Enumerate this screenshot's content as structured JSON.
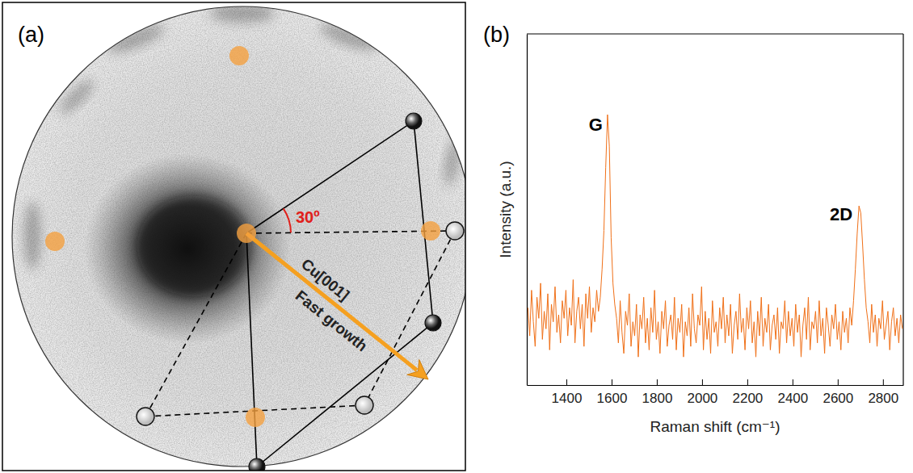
{
  "chart_data": [
    {
      "type": "diffraction",
      "title": "(a)",
      "annotations": [
        {
          "text": "30º"
        },
        {
          "text": "Cu[001]"
        },
        {
          "text": "Fast growth"
        }
      ]
    },
    {
      "type": "line",
      "title": "(b)",
      "x_label": "Raman shift (cm⁻¹)",
      "y_label": "Intensity (a.u.)",
      "color": "#f07018",
      "tick_labels": "x",
      "xlim": [
        1225,
        2890
      ],
      "xticks": [
        1400,
        1600,
        1800,
        2000,
        2200,
        2400,
        2600,
        2800
      ],
      "ylim": [
        0,
        100
      ],
      "annotations": [
        {
          "text": "G",
          "x": 1582
        },
        {
          "text": "2D",
          "x": 2694
        }
      ],
      "x": [
        1230,
        1238,
        1246,
        1254,
        1262,
        1270,
        1278,
        1286,
        1294,
        1302,
        1310,
        1318,
        1326,
        1334,
        1342,
        1350,
        1358,
        1366,
        1374,
        1382,
        1390,
        1398,
        1406,
        1414,
        1422,
        1430,
        1438,
        1446,
        1454,
        1462,
        1470,
        1478,
        1486,
        1494,
        1502,
        1510,
        1518,
        1526,
        1534,
        1542,
        1550,
        1558,
        1566,
        1574,
        1582,
        1590,
        1598,
        1606,
        1614,
        1622,
        1630,
        1638,
        1646,
        1654,
        1662,
        1670,
        1678,
        1686,
        1694,
        1702,
        1710,
        1718,
        1726,
        1734,
        1742,
        1750,
        1758,
        1766,
        1774,
        1782,
        1790,
        1798,
        1806,
        1814,
        1822,
        1830,
        1838,
        1846,
        1854,
        1862,
        1870,
        1878,
        1886,
        1894,
        1902,
        1910,
        1918,
        1926,
        1934,
        1942,
        1950,
        1958,
        1966,
        1974,
        1982,
        1990,
        1998,
        2006,
        2014,
        2022,
        2030,
        2038,
        2046,
        2054,
        2062,
        2070,
        2078,
        2086,
        2094,
        2102,
        2110,
        2118,
        2126,
        2134,
        2142,
        2150,
        2158,
        2166,
        2174,
        2182,
        2190,
        2198,
        2206,
        2214,
        2222,
        2230,
        2238,
        2246,
        2254,
        2262,
        2270,
        2278,
        2286,
        2294,
        2302,
        2310,
        2318,
        2326,
        2334,
        2342,
        2350,
        2358,
        2366,
        2374,
        2382,
        2390,
        2398,
        2406,
        2414,
        2422,
        2430,
        2438,
        2446,
        2454,
        2462,
        2470,
        2478,
        2486,
        2494,
        2502,
        2510,
        2518,
        2526,
        2534,
        2542,
        2550,
        2558,
        2566,
        2574,
        2582,
        2590,
        2598,
        2606,
        2614,
        2622,
        2630,
        2638,
        2646,
        2654,
        2662,
        2670,
        2678,
        2686,
        2694,
        2702,
        2710,
        2718,
        2726,
        2734,
        2742,
        2750,
        2758,
        2766,
        2774,
        2782,
        2790,
        2798,
        2806,
        2814,
        2822,
        2830,
        2838,
        2846,
        2854,
        2862,
        2870,
        2878,
        2886
      ],
      "values": [
        22,
        14,
        27,
        18,
        11,
        25,
        19,
        29,
        13,
        21,
        16,
        26,
        10,
        23,
        18,
        28,
        15,
        20,
        12,
        24,
        19,
        27,
        14,
        22,
        17,
        30,
        12,
        21,
        25,
        16,
        23,
        11,
        26,
        19,
        28,
        15,
        22,
        18,
        27,
        21,
        25,
        33,
        44,
        62,
        77,
        68,
        42,
        29,
        23,
        19,
        12,
        24,
        15,
        9,
        21,
        17,
        26,
        11,
        18,
        14,
        23,
        8,
        20,
        16,
        25,
        12,
        19,
        10,
        22,
        15,
        27,
        13,
        18,
        9,
        21,
        16,
        24,
        11,
        17,
        20,
        13,
        25,
        10,
        19,
        15,
        23,
        8,
        18,
        14,
        22,
        11,
        26,
        16,
        12,
        20,
        17,
        28,
        10,
        21,
        13,
        19,
        9,
        24,
        15,
        18,
        11,
        22,
        16,
        25,
        12,
        20,
        14,
        23,
        9,
        17,
        21,
        13,
        26,
        15,
        19,
        10,
        22,
        16,
        24,
        12,
        18,
        8,
        21,
        14,
        25,
        11,
        19,
        15,
        23,
        10,
        17,
        20,
        13,
        22,
        9,
        18,
        16,
        24,
        12,
        21,
        14,
        19,
        11,
        23,
        15,
        20,
        8,
        17,
        22,
        13,
        25,
        10,
        18,
        16,
        21,
        12,
        24,
        14,
        19,
        9,
        22,
        17,
        11,
        20,
        16,
        23,
        13,
        18,
        10,
        21,
        15,
        19,
        12,
        22,
        17,
        24,
        33,
        43,
        51,
        49,
        40,
        30,
        22,
        18,
        12,
        23,
        15,
        20,
        11,
        19,
        16,
        24,
        13,
        17,
        21,
        10,
        18,
        22,
        14,
        19,
        12,
        20,
        16
      ]
    }
  ]
}
